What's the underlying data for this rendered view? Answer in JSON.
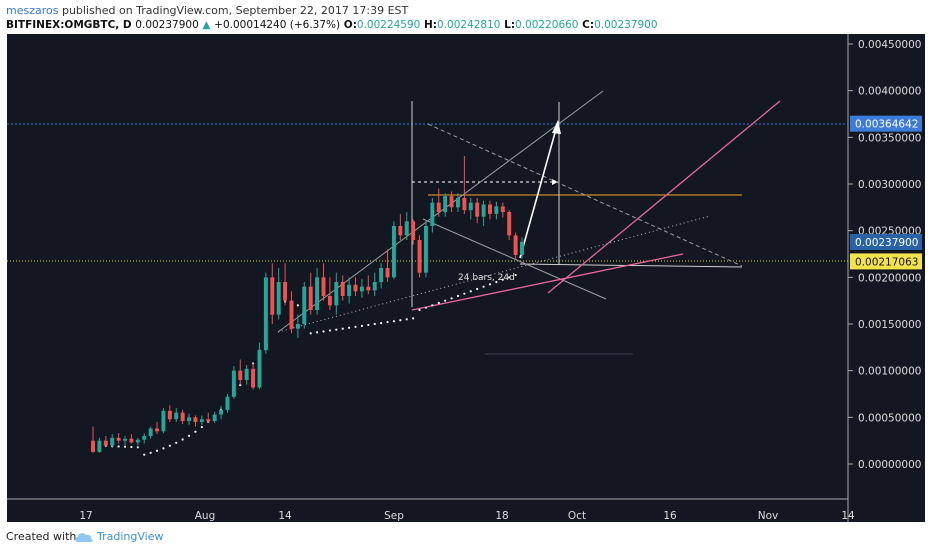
{
  "header": {
    "author": "meszaros",
    "published_text": " published on TradingView.com, September 22, 2017 17:39 EST",
    "symbol": "BITFINEX:OMGBTC, D",
    "last": "0.00237900",
    "change": "+0.00014240 (+6.37%)",
    "o_label": "O:",
    "o": "0.00224590",
    "h_label": "H:",
    "h": "0.00242810",
    "l_label": "L:",
    "l": "0.00220660",
    "c_label": "C:",
    "c": "0.00237900"
  },
  "footer": {
    "created": "Created with",
    "brand": "TradingView"
  },
  "annotation": "24 bars, 24d",
  "colors": {
    "background": "#131722",
    "up": "#26a69a",
    "down": "#ef5350",
    "trend_pink": "#e6679a",
    "orange_line": "#f5a623",
    "blue_line": "#3d7bd9",
    "yellow_line": "#d8d03a"
  },
  "chart_data": {
    "type": "candlestick",
    "y_ticks": [
      "0.00450000",
      "0.00400000",
      "0.00350000",
      "0.00300000",
      "0.00250000",
      "0.00200000",
      "0.00150000",
      "0.00100000",
      "0.00050000",
      "0.00000000"
    ],
    "x_ticks": [
      "17",
      "Aug",
      "14",
      "Sep",
      "18",
      "Oct",
      "16",
      "Nov",
      "14"
    ],
    "price_labels": [
      {
        "value": "0.00364642",
        "role": "blue-line"
      },
      {
        "value": "0.00237900",
        "role": "last-price"
      },
      {
        "value": "0.00217063",
        "role": "yellow-line"
      }
    ],
    "horizontal_levels": {
      "blue": 0.00364642,
      "yellow": 0.00217063,
      "orange": 0.00289
    },
    "candles": [
      {
        "o": 0.00025,
        "h": 0.0004,
        "l": 0.00012,
        "c": 0.00013
      },
      {
        "o": 0.00013,
        "h": 0.00028,
        "l": 0.00012,
        "c": 0.00025
      },
      {
        "o": 0.00025,
        "h": 0.0003,
        "l": 0.00018,
        "c": 0.0002
      },
      {
        "o": 0.0002,
        "h": 0.00032,
        "l": 0.00017,
        "c": 0.00028
      },
      {
        "o": 0.00028,
        "h": 0.00033,
        "l": 0.00022,
        "c": 0.00025
      },
      {
        "o": 0.00025,
        "h": 0.0003,
        "l": 0.0002,
        "c": 0.00027
      },
      {
        "o": 0.00027,
        "h": 0.00032,
        "l": 0.00022,
        "c": 0.00023
      },
      {
        "o": 0.00023,
        "h": 0.00028,
        "l": 0.0002,
        "c": 0.00026
      },
      {
        "o": 0.00026,
        "h": 0.00033,
        "l": 0.00022,
        "c": 0.0003
      },
      {
        "o": 0.0003,
        "h": 0.0004,
        "l": 0.00027,
        "c": 0.00038
      },
      {
        "o": 0.00038,
        "h": 0.00045,
        "l": 0.00032,
        "c": 0.00035
      },
      {
        "o": 0.00035,
        "h": 0.0006,
        "l": 0.00033,
        "c": 0.00057
      },
      {
        "o": 0.00057,
        "h": 0.00063,
        "l": 0.00045,
        "c": 0.00048
      },
      {
        "o": 0.00048,
        "h": 0.0006,
        "l": 0.00045,
        "c": 0.00055
      },
      {
        "o": 0.00055,
        "h": 0.00058,
        "l": 0.00043,
        "c": 0.00046
      },
      {
        "o": 0.00046,
        "h": 0.00054,
        "l": 0.00042,
        "c": 0.0005
      },
      {
        "o": 0.0005,
        "h": 0.00052,
        "l": 0.0004,
        "c": 0.00045
      },
      {
        "o": 0.00045,
        "h": 0.00052,
        "l": 0.00042,
        "c": 0.00048
      },
      {
        "o": 0.00048,
        "h": 0.00055,
        "l": 0.00044,
        "c": 0.00046
      },
      {
        "o": 0.00046,
        "h": 0.00056,
        "l": 0.00044,
        "c": 0.00053
      },
      {
        "o": 0.00053,
        "h": 0.00062,
        "l": 0.00048,
        "c": 0.00058
      },
      {
        "o": 0.00058,
        "h": 0.00075,
        "l": 0.00055,
        "c": 0.00072
      },
      {
        "o": 0.00072,
        "h": 0.00105,
        "l": 0.0007,
        "c": 0.001
      },
      {
        "o": 0.001,
        "h": 0.00112,
        "l": 0.00085,
        "c": 0.0009
      },
      {
        "o": 0.0009,
        "h": 0.00106,
        "l": 0.00085,
        "c": 0.00102
      },
      {
        "o": 0.00102,
        "h": 0.00108,
        "l": 0.0008,
        "c": 0.00082
      },
      {
        "o": 0.00082,
        "h": 0.0013,
        "l": 0.0008,
        "c": 0.00122
      },
      {
        "o": 0.00122,
        "h": 0.00205,
        "l": 0.00118,
        "c": 0.002
      },
      {
        "o": 0.002,
        "h": 0.00215,
        "l": 0.0015,
        "c": 0.0016
      },
      {
        "o": 0.0016,
        "h": 0.0021,
        "l": 0.00155,
        "c": 0.00195
      },
      {
        "o": 0.00195,
        "h": 0.00215,
        "l": 0.0017,
        "c": 0.00175
      },
      {
        "o": 0.00175,
        "h": 0.00185,
        "l": 0.0014,
        "c": 0.00145
      },
      {
        "o": 0.00145,
        "h": 0.0016,
        "l": 0.00135,
        "c": 0.0015
      },
      {
        "o": 0.0015,
        "h": 0.00195,
        "l": 0.00145,
        "c": 0.0019
      },
      {
        "o": 0.0019,
        "h": 0.00205,
        "l": 0.0016,
        "c": 0.00165
      },
      {
        "o": 0.00165,
        "h": 0.0021,
        "l": 0.0016,
        "c": 0.002
      },
      {
        "o": 0.002,
        "h": 0.00215,
        "l": 0.00175,
        "c": 0.0018
      },
      {
        "o": 0.0018,
        "h": 0.002,
        "l": 0.00165,
        "c": 0.0017
      },
      {
        "o": 0.0017,
        "h": 0.00205,
        "l": 0.0016,
        "c": 0.00195
      },
      {
        "o": 0.00195,
        "h": 0.00202,
        "l": 0.00175,
        "c": 0.0018
      },
      {
        "o": 0.0018,
        "h": 0.002,
        "l": 0.00172,
        "c": 0.00192
      },
      {
        "o": 0.00192,
        "h": 0.002,
        "l": 0.0018,
        "c": 0.00185
      },
      {
        "o": 0.00185,
        "h": 0.00198,
        "l": 0.00178,
        "c": 0.0019
      },
      {
        "o": 0.0019,
        "h": 0.00202,
        "l": 0.00182,
        "c": 0.00186
      },
      {
        "o": 0.00186,
        "h": 0.00205,
        "l": 0.0018,
        "c": 0.00195
      },
      {
        "o": 0.00195,
        "h": 0.00215,
        "l": 0.00188,
        "c": 0.0021
      },
      {
        "o": 0.0021,
        "h": 0.0023,
        "l": 0.00195,
        "c": 0.002
      },
      {
        "o": 0.002,
        "h": 0.0026,
        "l": 0.00198,
        "c": 0.00255
      },
      {
        "o": 0.00255,
        "h": 0.00268,
        "l": 0.0024,
        "c": 0.00245
      },
      {
        "o": 0.00245,
        "h": 0.0027,
        "l": 0.0024,
        "c": 0.0026
      },
      {
        "o": 0.0026,
        "h": 0.00262,
        "l": 0.00235,
        "c": 0.0024
      },
      {
        "o": 0.0024,
        "h": 0.00245,
        "l": 0.002,
        "c": 0.00205
      },
      {
        "o": 0.00205,
        "h": 0.0026,
        "l": 0.002,
        "c": 0.00255
      },
      {
        "o": 0.00255,
        "h": 0.00285,
        "l": 0.00248,
        "c": 0.0028
      },
      {
        "o": 0.0028,
        "h": 0.00295,
        "l": 0.00265,
        "c": 0.0027
      },
      {
        "o": 0.0027,
        "h": 0.0029,
        "l": 0.00265,
        "c": 0.00287
      },
      {
        "o": 0.00287,
        "h": 0.00292,
        "l": 0.0027,
        "c": 0.00275
      },
      {
        "o": 0.00275,
        "h": 0.0029,
        "l": 0.0027,
        "c": 0.00285
      },
      {
        "o": 0.00285,
        "h": 0.0033,
        "l": 0.00268,
        "c": 0.00272
      },
      {
        "o": 0.00272,
        "h": 0.00285,
        "l": 0.00262,
        "c": 0.0028
      },
      {
        "o": 0.0028,
        "h": 0.00285,
        "l": 0.00258,
        "c": 0.00265
      },
      {
        "o": 0.00265,
        "h": 0.00282,
        "l": 0.00255,
        "c": 0.00278
      },
      {
        "o": 0.00278,
        "h": 0.00282,
        "l": 0.00262,
        "c": 0.00268
      },
      {
        "o": 0.00268,
        "h": 0.00281,
        "l": 0.00262,
        "c": 0.00276
      },
      {
        "o": 0.00276,
        "h": 0.0028,
        "l": 0.00264,
        "c": 0.0027
      },
      {
        "o": 0.0027,
        "h": 0.00272,
        "l": 0.0024,
        "c": 0.00245
      },
      {
        "o": 0.00245,
        "h": 0.00248,
        "l": 0.0022,
        "c": 0.00224
      },
      {
        "o": 0.00224,
        "h": 0.00243,
        "l": 0.0022,
        "c": 0.00238
      }
    ]
  }
}
